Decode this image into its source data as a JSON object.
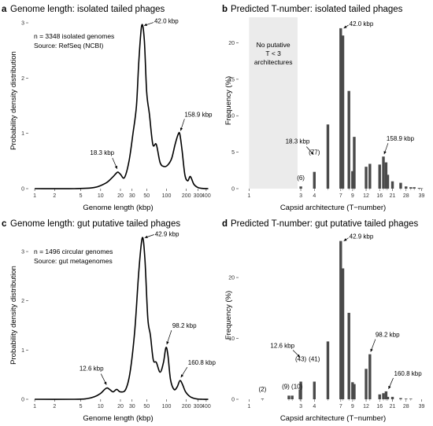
{
  "panels": [
    {
      "letter": "a",
      "title": "Genome length: isolated tailed phages"
    },
    {
      "letter": "b",
      "title": "Predicted T-number: isolated tailed phages"
    },
    {
      "letter": "c",
      "title": "Genome length: gut putative tailed phages"
    },
    {
      "letter": "d",
      "title": "Predicted T-number: gut putative tailed phages"
    }
  ],
  "chart_data": [
    {
      "type": "line",
      "title": "Genome length: isolated tailed phages",
      "xlabel": "Genome length (kbp)",
      "ylabel": "Probability density distribution",
      "xscale": "log",
      "xlim": [
        0.8,
        500
      ],
      "ylim": [
        0,
        3.1
      ],
      "xticks": [
        "1",
        "2",
        "5",
        "10",
        "20",
        "30",
        "50",
        "100",
        "200",
        "300",
        "400"
      ],
      "yticks": [
        "0",
        "1",
        "2",
        "3"
      ],
      "notes": [
        "n = 3348 isolated genomes",
        "Source: RefSeq (NCBI)"
      ],
      "x": [
        1,
        4,
        8,
        12,
        15,
        17,
        18.3,
        20,
        23,
        27,
        31,
        35,
        38,
        42,
        46,
        50,
        55,
        62,
        70,
        80,
        92,
        105,
        120,
        135,
        150,
        159,
        172,
        190,
        210,
        230,
        260,
        300,
        350,
        430
      ],
      "y": [
        0,
        0,
        0.02,
        0.1,
        0.2,
        0.27,
        0.3,
        0.26,
        0.2,
        0.5,
        1.0,
        1.5,
        2.3,
        2.95,
        2.7,
        1.75,
        1.35,
        0.8,
        0.8,
        0.47,
        0.4,
        0.43,
        0.55,
        0.8,
        0.98,
        0.99,
        0.7,
        0.25,
        0.14,
        0.22,
        0.08,
        0.02,
        0.005,
        0
      ],
      "annotations": [
        {
          "label": "42.0 kbp",
          "x": 42,
          "y": 2.95
        },
        {
          "label": "158.9 kbp",
          "x": 159,
          "y": 0.99
        },
        {
          "label": "18.3 kbp",
          "x": 18.3,
          "y": 0.3
        }
      ]
    },
    {
      "type": "bar",
      "title": "Predicted T-number: isolated tailed phages",
      "xlabel": "Capsid architecture (T−number)",
      "ylabel": "Frequency (%)",
      "ylim": [
        0,
        23.5
      ],
      "xticks": [
        "1",
        "3",
        "4",
        "7",
        "9",
        "12",
        "16",
        "21",
        "28",
        "39"
      ],
      "yticks": [
        "0",
        "5",
        "10",
        "15",
        "20"
      ],
      "shaded_region": {
        "xmin": 1,
        "xmax": 2.8,
        "label": "No putative\nT < 3\narchitectures"
      },
      "categories": [
        "3",
        "4",
        "5.33",
        "7",
        "7.33",
        "8.33",
        "9",
        "9.33",
        "12",
        "13",
        "16",
        "17.33",
        "18.33",
        "19",
        "21",
        "25",
        "28",
        "31",
        "33.33",
        "37",
        "39"
      ],
      "values": [
        0.3,
        2.3,
        8.8,
        22.0,
        21.0,
        13.4,
        2.4,
        7.1,
        3.0,
        3.4,
        3.3,
        4.4,
        3.6,
        1.9,
        1.0,
        0.8,
        0.3,
        0.2,
        0.2,
        0.1,
        0.05
      ],
      "annotations": [
        {
          "label": "42.0 kbp",
          "x": 7.1,
          "y": 22
        },
        {
          "label": "158.9 kbp",
          "x": 17.3,
          "y": 4.4
        },
        {
          "label": "18.3 kbp",
          "x": 4,
          "y": 2.3
        },
        {
          "label": "(77)",
          "x": 4,
          "y": 2.3
        },
        {
          "label": "(6)",
          "x": 3,
          "y": 0.3
        }
      ]
    },
    {
      "type": "line",
      "title": "Genome length: gut putative tailed phages",
      "xlabel": "Genome length (kbp)",
      "ylabel": "Probability density distribution",
      "xscale": "log",
      "xlim": [
        0.8,
        500
      ],
      "ylim": [
        0,
        3.4
      ],
      "xticks": [
        "1",
        "2",
        "5",
        "10",
        "20",
        "30",
        "50",
        "100",
        "200",
        "300",
        "400"
      ],
      "yticks": [
        "0",
        "1",
        "2",
        "3"
      ],
      "notes": [
        "n = 1496 circular genomes",
        "Source: gut metagenomes"
      ],
      "x": [
        1,
        4,
        6,
        8,
        10,
        11.5,
        12.6,
        14,
        15.5,
        17.5,
        20,
        24,
        28,
        33,
        38,
        42.9,
        47,
        52,
        57,
        63,
        70,
        80,
        90,
        98,
        105,
        115,
        130,
        145,
        160,
        175,
        195,
        230,
        280,
        350,
        430
      ],
      "y": [
        0,
        0,
        0.01,
        0.05,
        0.12,
        0.2,
        0.23,
        0.19,
        0.15,
        0.2,
        0.15,
        0.2,
        0.55,
        1.4,
        2.6,
        3.28,
        2.85,
        1.65,
        1.3,
        0.8,
        0.75,
        0.55,
        0.75,
        1.05,
        0.9,
        0.4,
        0.2,
        0.25,
        0.38,
        0.3,
        0.15,
        0.05,
        0.01,
        0,
        0
      ],
      "annotations": [
        {
          "label": "42.9 kbp",
          "x": 42.9,
          "y": 3.28
        },
        {
          "label": "98.2 kbp",
          "x": 98.2,
          "y": 1.05
        },
        {
          "label": "160.8 kbp",
          "x": 160.8,
          "y": 0.38
        },
        {
          "label": "12.6 kbp",
          "x": 12.6,
          "y": 0.23
        }
      ]
    },
    {
      "type": "bar",
      "title": "Predicted T-number: gut putative tailed phages",
      "xlabel": "Capsid architecture (T−number)",
      "ylabel": "Frequency (%)",
      "ylim": [
        0,
        27.5
      ],
      "xticks": [
        "1",
        "3",
        "4",
        "7",
        "9",
        "12",
        "16",
        "21",
        "28",
        "39"
      ],
      "yticks": [
        "0",
        "10",
        "20"
      ],
      "categories": [
        "1.33",
        "2.33",
        "2.5",
        "2.95",
        "3",
        "4",
        "5.33",
        "7",
        "7.33",
        "8.33",
        "9",
        "9.33",
        "12",
        "13",
        "16",
        "17.33",
        "18.33",
        "19",
        "21",
        "25",
        "28",
        "31"
      ],
      "values": [
        0.1,
        0.6,
        0.6,
        1.6,
        2.9,
        2.9,
        9.5,
        26.0,
        21.5,
        14.2,
        2.8,
        2.5,
        5.0,
        7.4,
        0.8,
        1.0,
        1.3,
        0.4,
        0.4,
        0.2,
        0.1,
        0.1
      ],
      "annotations": [
        {
          "label": "42.9 kbp",
          "x": 7.1,
          "y": 26
        },
        {
          "label": "98.2 kbp",
          "x": 13,
          "y": 7.4
        },
        {
          "label": "160.8 kbp",
          "x": 19,
          "y": 1.3
        },
        {
          "label": "12.6 kbp",
          "x": 3,
          "y": 2.9
        },
        {
          "label": "(2)",
          "x": 1.33,
          "y": 0.1
        },
        {
          "label": "(9)",
          "x": 2.33,
          "y": 0.6
        },
        {
          "label": "(10)",
          "x": 2.5,
          "y": 0.6
        },
        {
          "label": "(43)",
          "x": 3,
          "y": 2.9
        },
        {
          "label": "(41)",
          "x": 4,
          "y": 2.9
        }
      ]
    }
  ]
}
